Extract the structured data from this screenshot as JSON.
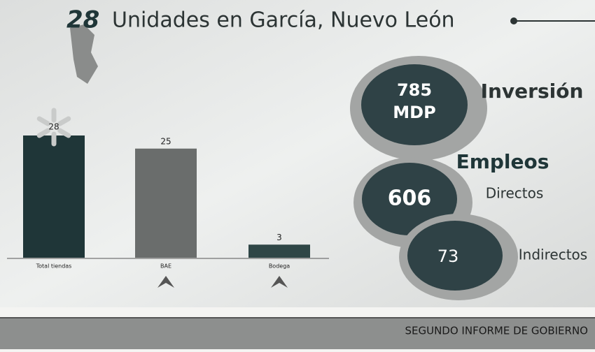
{
  "header": {
    "count": "28",
    "title": "Unidades en García, Nuevo León"
  },
  "chart_data": {
    "type": "bar",
    "categories": [
      "Total tiendas",
      "BAE",
      "Bodega"
    ],
    "values": [
      28,
      25,
      3
    ],
    "colors": [
      "#1f3638",
      "#6a6d6c",
      "#2f4646"
    ]
  },
  "investment": {
    "value": "785",
    "unit": "MDP",
    "label": "Inversión"
  },
  "employment": {
    "title": "Empleos",
    "direct": {
      "value": "606",
      "label": "Directos"
    },
    "indirect": {
      "value": "73",
      "label": "Indirectos"
    }
  },
  "footer": {
    "text": "SEGUNDO INFORME DE GOBIERNO"
  }
}
